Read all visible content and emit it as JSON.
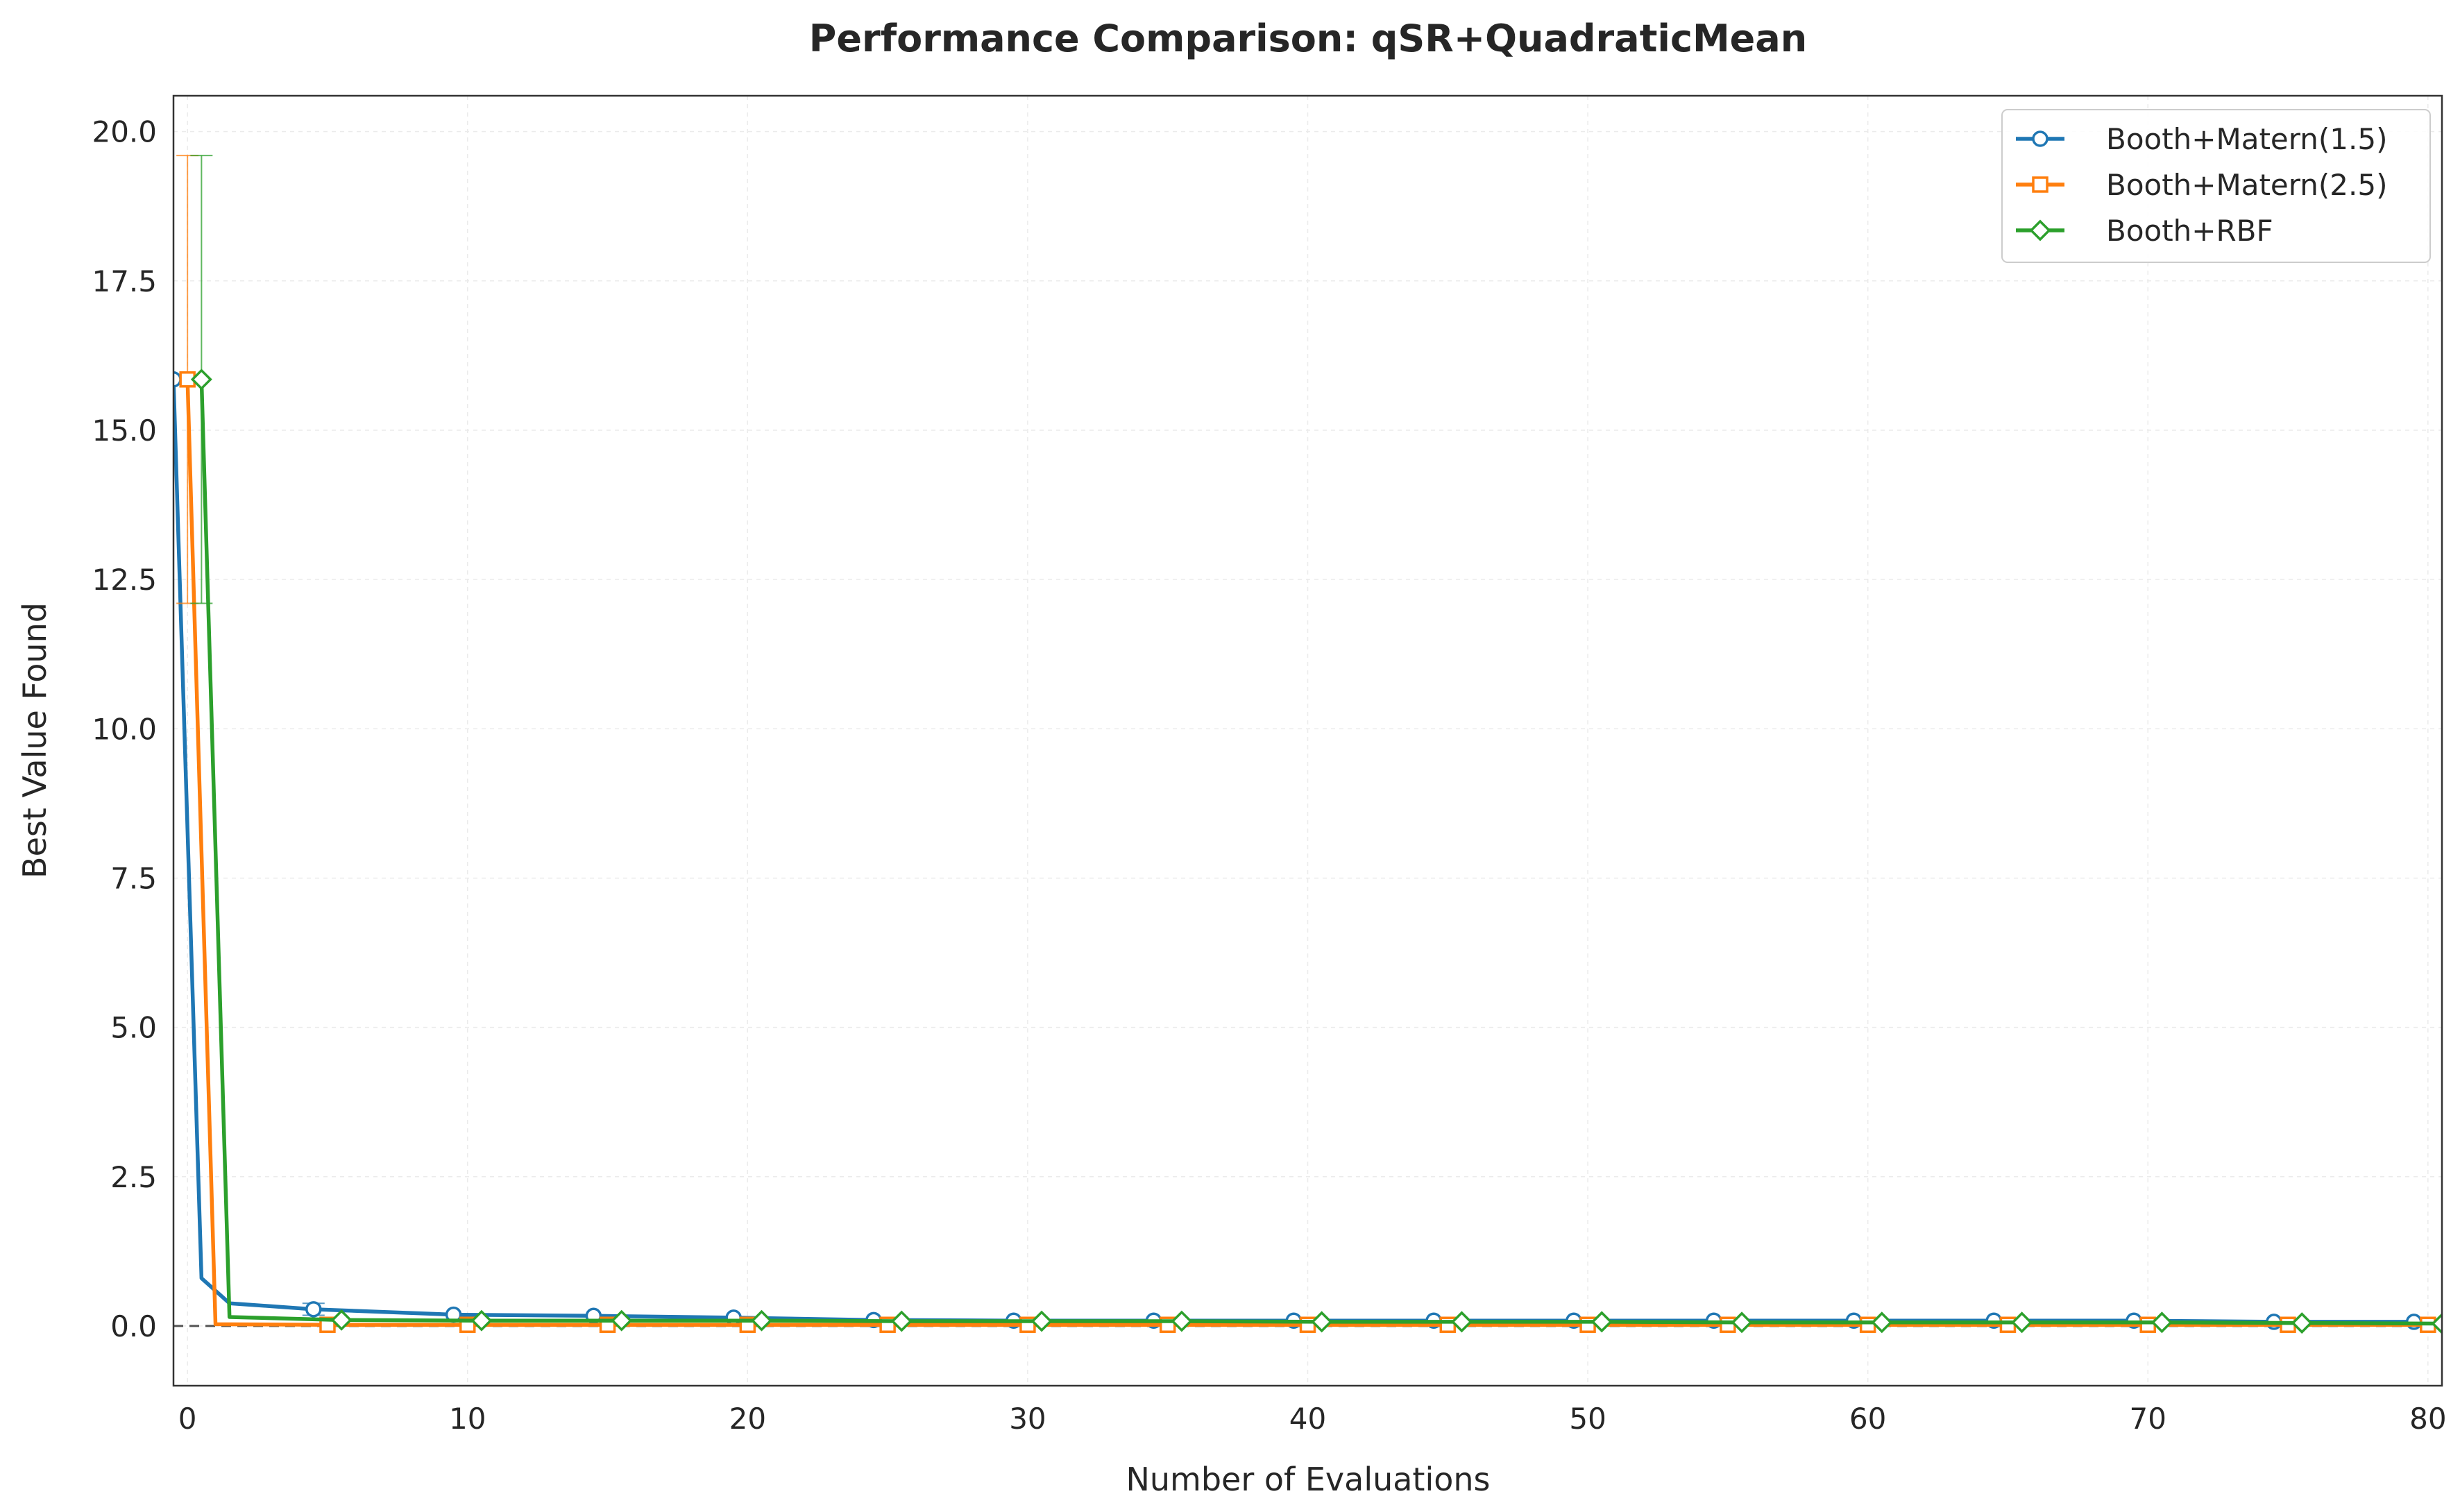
{
  "chart_data": {
    "type": "line",
    "title": "Performance Comparison: qSR+QuadraticMean",
    "xlabel": "Number of Evaluations",
    "ylabel": "Best Value Found",
    "xlim": [
      -0.5,
      80.5
    ],
    "ylim": [
      -1.0,
      20.6
    ],
    "xticks": [
      0,
      10,
      20,
      30,
      40,
      50,
      60,
      70,
      80
    ],
    "xtick_labels": [
      "0",
      "10",
      "20",
      "30",
      "40",
      "50",
      "60",
      "70",
      "80"
    ],
    "yticks": [
      0,
      2.5,
      5,
      7.5,
      10,
      12.5,
      15,
      17.5,
      20
    ],
    "ytick_labels": [
      "0.0",
      "2.5",
      "5.0",
      "7.5",
      "10.0",
      "12.5",
      "15.0",
      "17.5",
      "20.0"
    ],
    "grid": true,
    "legend_position": "top-right",
    "reference_line": {
      "y": 0,
      "style": "dashed",
      "color": "#555555"
    },
    "series": [
      {
        "name": "Booth+Matern(1.5)",
        "color": "#1f77b4",
        "marker": "circle",
        "x": [
          -0.5,
          0.5,
          1.5,
          4.5,
          9.5,
          14.5,
          19.5,
          24.5,
          29.5,
          34.5,
          39.5,
          44.5,
          49.5,
          54.5,
          59.5,
          64.5,
          69.5,
          74.5,
          79.5
        ],
        "y": [
          15.85,
          0.8,
          0.38,
          0.28,
          0.19,
          0.17,
          0.14,
          0.1,
          0.09,
          0.09,
          0.09,
          0.09,
          0.09,
          0.09,
          0.09,
          0.09,
          0.09,
          0.07,
          0.07
        ],
        "marker_x": [
          -0.5,
          4.5,
          9.5,
          14.5,
          19.5,
          24.5,
          29.5,
          34.5,
          39.5,
          44.5,
          49.5,
          54.5,
          59.5,
          64.5,
          69.5,
          74.5,
          79.5
        ],
        "error_bars": [
          {
            "x": 4.5,
            "low": 0.18,
            "high": 0.38
          }
        ]
      },
      {
        "name": "Booth+Matern(2.5)",
        "color": "#ff7f0e",
        "marker": "square",
        "x": [
          0,
          1,
          5,
          10,
          15,
          20,
          25,
          30,
          35,
          40,
          45,
          50,
          55,
          60,
          65,
          70,
          75,
          80
        ],
        "y": [
          15.85,
          0.03,
          0.02,
          0.02,
          0.02,
          0.02,
          0.02,
          0.02,
          0.02,
          0.02,
          0.02,
          0.02,
          0.02,
          0.02,
          0.02,
          0.02,
          0.02,
          0.02
        ],
        "marker_x": [
          0,
          5,
          10,
          15,
          20,
          25,
          30,
          35,
          40,
          45,
          50,
          55,
          60,
          65,
          70,
          75,
          80
        ],
        "error_bars": [
          {
            "x": 0,
            "low": 12.1,
            "high": 19.6
          }
        ]
      },
      {
        "name": "Booth+RBF",
        "color": "#2ca02c",
        "marker": "diamond",
        "x": [
          0.5,
          1.5,
          5.5,
          10.5,
          15.5,
          20.5,
          25.5,
          30.5,
          35.5,
          40.5,
          45.5,
          50.5,
          55.5,
          60.5,
          65.5,
          70.5,
          75.5,
          80.5
        ],
        "y": [
          15.85,
          0.15,
          0.1,
          0.09,
          0.09,
          0.09,
          0.08,
          0.08,
          0.08,
          0.07,
          0.07,
          0.07,
          0.06,
          0.06,
          0.06,
          0.06,
          0.05,
          0.04
        ],
        "marker_x": [
          0.5,
          5.5,
          10.5,
          15.5,
          20.5,
          25.5,
          30.5,
          35.5,
          40.5,
          45.5,
          50.5,
          55.5,
          60.5,
          65.5,
          70.5,
          75.5,
          80.5
        ],
        "error_bars": [
          {
            "x": 0.5,
            "low": 12.1,
            "high": 19.6
          }
        ]
      }
    ]
  }
}
